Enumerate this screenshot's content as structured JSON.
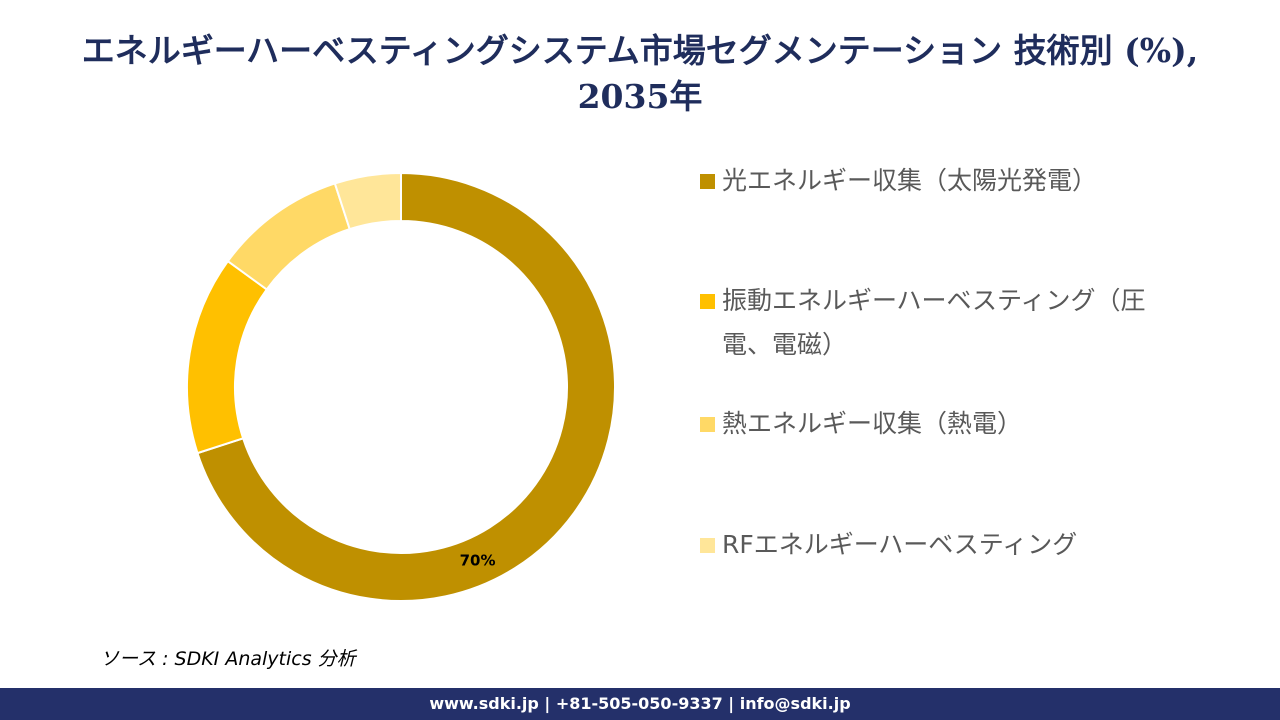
{
  "chart_data": {
    "type": "donut",
    "title": "エネルギーハーベスティングシステム市場セグメンテーション 技術別 (%), 2035年",
    "categories": [
      "光エネルギー収集（太陽光発電）",
      "振動エネルギーハーベスティング（圧電、電磁）",
      "熱エネルギー収集（熱電）",
      "RFエネルギーハーベスティング"
    ],
    "values": [
      70,
      15,
      10,
      5
    ],
    "value_labels": [
      "70%",
      null,
      null,
      null
    ],
    "colors": [
      "#bf9000",
      "#ffc000",
      "#ffd966",
      "#ffe699"
    ]
  },
  "source": "ソース : SDKI Analytics 分析",
  "footer": "www.sdki.jp | +81-505-050-9337 | info@sdki.jp"
}
